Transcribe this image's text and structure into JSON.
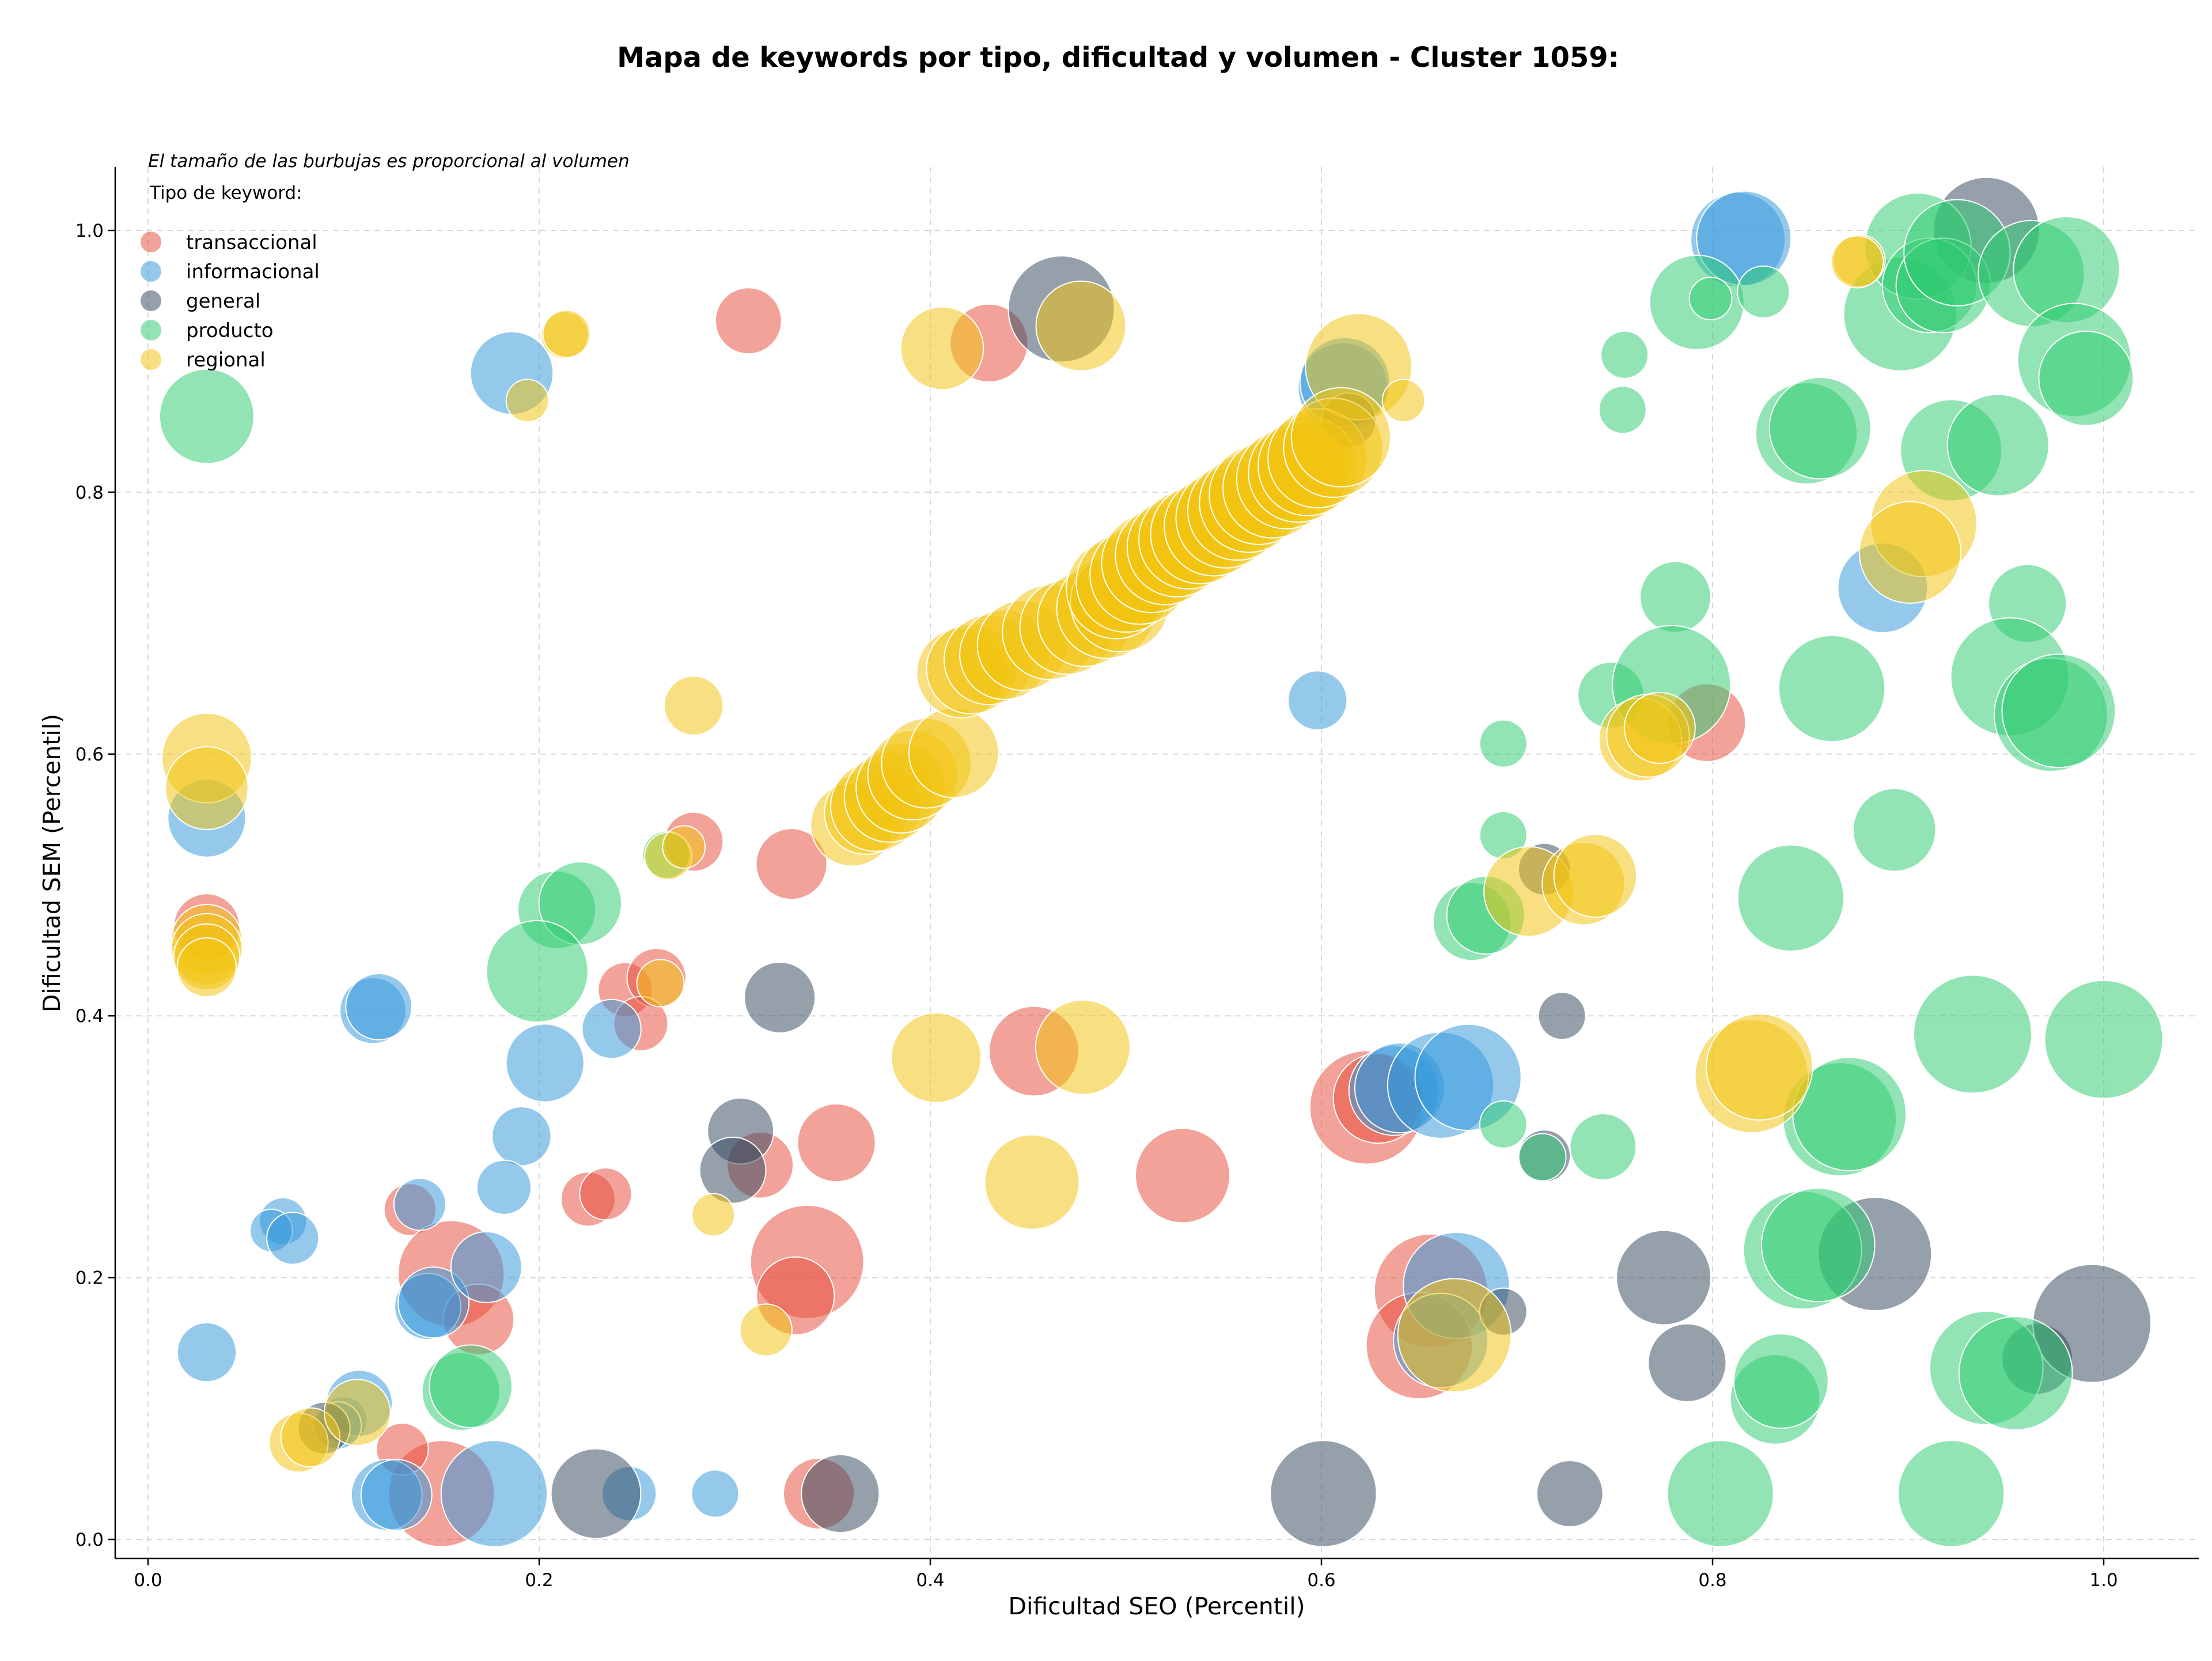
{
  "chart_data": {
    "type": "scatter",
    "title": "Mapa de keywords por tipo, dificultad y volumen - Cluster 1059:",
    "xlabel": "Dificultad SEO (Percentil)",
    "ylabel": "Dificultad SEM (Percentil)",
    "xlim": [
      -0.018,
      1.048
    ],
    "ylim": [
      -0.012,
      1.048
    ],
    "xticks": [
      "0.0",
      "0.2",
      "0.4",
      "0.6",
      "0.8",
      "1.0"
    ],
    "yticks": [
      "0.0",
      "0.2",
      "0.4",
      "0.6",
      "0.8",
      "1.0"
    ],
    "grid": true,
    "note": "El tamaño de las burbujas es proporcional al volumen",
    "legend_title": "Tipo de keyword:",
    "legend_position": "top-left",
    "series": [
      {
        "name": "transaccional",
        "color": "#e74c3c",
        "points": [
          [
            0.307,
            0.931,
            28
          ],
          [
            0.43,
            0.914,
            33
          ],
          [
            0.03,
            0.468,
            28
          ],
          [
            0.279,
            0.533,
            25
          ],
          [
            0.329,
            0.516,
            30
          ],
          [
            0.244,
            0.42,
            23
          ],
          [
            0.26,
            0.429,
            25
          ],
          [
            0.252,
            0.394,
            23
          ],
          [
            0.313,
            0.286,
            28
          ],
          [
            0.352,
            0.303,
            33
          ],
          [
            0.453,
            0.373,
            38
          ],
          [
            0.529,
            0.278,
            40
          ],
          [
            0.134,
            0.252,
            22
          ],
          [
            0.225,
            0.26,
            23
          ],
          [
            0.234,
            0.264,
            22
          ],
          [
            0.155,
            0.203,
            45
          ],
          [
            0.169,
            0.168,
            30
          ],
          [
            0.337,
            0.212,
            48
          ],
          [
            0.331,
            0.186,
            33
          ],
          [
            0.15,
            0.035,
            45
          ],
          [
            0.13,
            0.069,
            22
          ],
          [
            0.343,
            0.035,
            30
          ],
          [
            0.623,
            0.33,
            48
          ],
          [
            0.629,
            0.337,
            38
          ],
          [
            0.656,
            0.19,
            48
          ],
          [
            0.65,
            0.148,
            45
          ],
          [
            0.797,
            0.624,
            33
          ]
        ]
      },
      {
        "name": "informacional",
        "color": "#3498db",
        "points": [
          [
            0.186,
            0.891,
            35
          ],
          [
            0.813,
            0.993,
            40
          ],
          [
            0.816,
            0.994,
            40
          ],
          [
            0.03,
            0.551,
            33
          ],
          [
            0.611,
            0.88,
            38
          ],
          [
            0.612,
            0.884,
            38
          ],
          [
            0.598,
            0.641,
            25
          ],
          [
            0.887,
            0.727,
            38
          ],
          [
            0.115,
            0.404,
            28
          ],
          [
            0.118,
            0.407,
            28
          ],
          [
            0.237,
            0.39,
            25
          ],
          [
            0.203,
            0.364,
            33
          ],
          [
            0.191,
            0.308,
            25
          ],
          [
            0.182,
            0.269,
            23
          ],
          [
            0.139,
            0.256,
            22
          ],
          [
            0.069,
            0.243,
            20
          ],
          [
            0.063,
            0.236,
            18
          ],
          [
            0.074,
            0.23,
            22
          ],
          [
            0.143,
            0.178,
            28
          ],
          [
            0.146,
            0.181,
            30
          ],
          [
            0.173,
            0.208,
            30
          ],
          [
            0.03,
            0.143,
            25
          ],
          [
            0.1,
            0.091,
            20
          ],
          [
            0.108,
            0.104,
            28
          ],
          [
            0.097,
            0.087,
            20
          ],
          [
            0.122,
            0.034,
            30
          ],
          [
            0.127,
            0.034,
            30
          ],
          [
            0.177,
            0.035,
            45
          ],
          [
            0.246,
            0.035,
            23
          ],
          [
            0.29,
            0.035,
            20
          ],
          [
            0.637,
            0.343,
            38
          ],
          [
            0.64,
            0.345,
            38
          ],
          [
            0.661,
            0.347,
            45
          ],
          [
            0.675,
            0.353,
            45
          ],
          [
            0.669,
            0.194,
            45
          ],
          [
            0.661,
            0.152,
            40
          ]
        ]
      },
      {
        "name": "general",
        "color": "#34495e",
        "points": [
          [
            0.467,
            0.94,
            45
          ],
          [
            0.614,
            0.855,
            23
          ],
          [
            0.94,
            1.0,
            45
          ],
          [
            0.323,
            0.414,
            30
          ],
          [
            0.303,
            0.312,
            28
          ],
          [
            0.299,
            0.282,
            28
          ],
          [
            0.229,
            0.035,
            38
          ],
          [
            0.354,
            0.035,
            33
          ],
          [
            0.601,
            0.035,
            45
          ],
          [
            0.727,
            0.035,
            28
          ],
          [
            0.714,
            0.512,
            22
          ],
          [
            0.723,
            0.4,
            20
          ],
          [
            0.714,
            0.293,
            22
          ],
          [
            0.693,
            0.174,
            20
          ],
          [
            0.775,
            0.2,
            40
          ],
          [
            0.787,
            0.135,
            33
          ],
          [
            0.883,
            0.218,
            48
          ],
          [
            0.966,
            0.138,
            30
          ],
          [
            0.994,
            0.165,
            50
          ],
          [
            0.09,
            0.085,
            22
          ]
        ]
      },
      {
        "name": "producto",
        "color": "#2ecc71",
        "points": [
          [
            0.03,
            0.858,
            40
          ],
          [
            0.209,
            0.481,
            33
          ],
          [
            0.221,
            0.486,
            35
          ],
          [
            0.199,
            0.434,
            43
          ],
          [
            0.16,
            0.113,
            33
          ],
          [
            0.165,
            0.117,
            35
          ],
          [
            0.265,
            0.523,
            20
          ],
          [
            0.755,
            0.905,
            20
          ],
          [
            0.754,
            0.863,
            20
          ],
          [
            0.792,
            0.945,
            40
          ],
          [
            0.799,
            0.948,
            18
          ],
          [
            0.826,
            0.953,
            22
          ],
          [
            0.896,
            0.936,
            48
          ],
          [
            0.905,
            0.988,
            45
          ],
          [
            0.911,
            0.958,
            40
          ],
          [
            0.918,
            0.958,
            40
          ],
          [
            0.925,
            0.983,
            45
          ],
          [
            0.963,
            0.967,
            45
          ],
          [
            0.981,
            0.97,
            45
          ],
          [
            0.985,
            0.901,
            48
          ],
          [
            0.991,
            0.887,
            40
          ],
          [
            0.848,
            0.845,
            43
          ],
          [
            0.855,
            0.849,
            43
          ],
          [
            0.922,
            0.832,
            43
          ],
          [
            0.946,
            0.836,
            43
          ],
          [
            0.781,
            0.72,
            30
          ],
          [
            0.961,
            0.715,
            33
          ],
          [
            0.748,
            0.645,
            28
          ],
          [
            0.779,
            0.653,
            50
          ],
          [
            0.861,
            0.65,
            45
          ],
          [
            0.952,
            0.659,
            50
          ],
          [
            0.973,
            0.63,
            48
          ],
          [
            0.977,
            0.633,
            48
          ],
          [
            0.893,
            0.542,
            35
          ],
          [
            0.693,
            0.608,
            20
          ],
          [
            0.693,
            0.538,
            20
          ],
          [
            0.677,
            0.472,
            33
          ],
          [
            0.684,
            0.477,
            33
          ],
          [
            0.84,
            0.49,
            45
          ],
          [
            0.693,
            0.317,
            20
          ],
          [
            0.713,
            0.292,
            20
          ],
          [
            0.744,
            0.3,
            28
          ],
          [
            0.933,
            0.386,
            50
          ],
          [
            1.0,
            0.382,
            50
          ],
          [
            0.865,
            0.321,
            48
          ],
          [
            0.87,
            0.325,
            48
          ],
          [
            0.846,
            0.221,
            50
          ],
          [
            0.854,
            0.225,
            48
          ],
          [
            0.832,
            0.107,
            38
          ],
          [
            0.835,
            0.121,
            40
          ],
          [
            0.804,
            0.035,
            45
          ],
          [
            0.922,
            0.035,
            45
          ],
          [
            0.94,
            0.131,
            48
          ],
          [
            0.955,
            0.127,
            48
          ]
        ]
      },
      {
        "name": "regional",
        "color": "#f1c40f",
        "points": [
          [
            0.213,
            0.92,
            20
          ],
          [
            0.214,
            0.921,
            20
          ],
          [
            0.194,
            0.87,
            18
          ],
          [
            0.406,
            0.91,
            35
          ],
          [
            0.477,
            0.927,
            38
          ],
          [
            0.619,
            0.896,
            45
          ],
          [
            0.642,
            0.87,
            18
          ],
          [
            0.875,
            0.977,
            22
          ],
          [
            0.874,
            0.976,
            22
          ],
          [
            0.908,
            0.776,
            45
          ],
          [
            0.901,
            0.754,
            43
          ],
          [
            0.03,
            0.597,
            38
          ],
          [
            0.03,
            0.574,
            35
          ],
          [
            0.03,
            0.458,
            30
          ],
          [
            0.03,
            0.451,
            30
          ],
          [
            0.03,
            0.445,
            28
          ],
          [
            0.03,
            0.437,
            25
          ],
          [
            0.279,
            0.637,
            25
          ],
          [
            0.262,
            0.425,
            20
          ],
          [
            0.266,
            0.522,
            20
          ],
          [
            0.274,
            0.529,
            18
          ],
          [
            0.289,
            0.248,
            18
          ],
          [
            0.316,
            0.16,
            22
          ],
          [
            0.403,
            0.368,
            38
          ],
          [
            0.478,
            0.376,
            40
          ],
          [
            0.452,
            0.273,
            40
          ],
          [
            0.077,
            0.074,
            25
          ],
          [
            0.083,
            0.078,
            25
          ],
          [
            0.36,
            0.546,
            35
          ],
          [
            0.367,
            0.555,
            35
          ],
          [
            0.372,
            0.56,
            38
          ],
          [
            0.379,
            0.567,
            38
          ],
          [
            0.385,
            0.574,
            38
          ],
          [
            0.391,
            0.584,
            38
          ],
          [
            0.398,
            0.593,
            38
          ],
          [
            0.412,
            0.601,
            38
          ],
          [
            0.416,
            0.662,
            38
          ],
          [
            0.421,
            0.665,
            38
          ],
          [
            0.43,
            0.672,
            38
          ],
          [
            0.438,
            0.676,
            38
          ],
          [
            0.447,
            0.683,
            38
          ],
          [
            0.461,
            0.693,
            40
          ],
          [
            0.47,
            0.697,
            40
          ],
          [
            0.479,
            0.703,
            40
          ],
          [
            0.49,
            0.711,
            42
          ],
          [
            0.497,
            0.716,
            42
          ],
          [
            0.495,
            0.726,
            42
          ],
          [
            0.5,
            0.731,
            42
          ],
          [
            0.507,
            0.737,
            42
          ],
          [
            0.513,
            0.746,
            42
          ],
          [
            0.52,
            0.752,
            42
          ],
          [
            0.526,
            0.758,
            42
          ],
          [
            0.532,
            0.764,
            42
          ],
          [
            0.538,
            0.768,
            42
          ],
          [
            0.545,
            0.774,
            42
          ],
          [
            0.551,
            0.78,
            42
          ],
          [
            0.557,
            0.786,
            42
          ],
          [
            0.563,
            0.792,
            42
          ],
          [
            0.568,
            0.798,
            42
          ],
          [
            0.575,
            0.803,
            42
          ],
          [
            0.582,
            0.81,
            42
          ],
          [
            0.588,
            0.815,
            42
          ],
          [
            0.593,
            0.82,
            42
          ],
          [
            0.598,
            0.826,
            42
          ],
          [
            0.606,
            0.834,
            42
          ],
          [
            0.61,
            0.842,
            42
          ],
          [
            0.706,
            0.495,
            38
          ],
          [
            0.734,
            0.501,
            35
          ],
          [
            0.74,
            0.507,
            35
          ],
          [
            0.763,
            0.611,
            35
          ],
          [
            0.767,
            0.614,
            35
          ],
          [
            0.773,
            0.62,
            30
          ],
          [
            0.82,
            0.354,
            48
          ],
          [
            0.824,
            0.361,
            45
          ],
          [
            0.668,
            0.156,
            48
          ],
          [
            0.107,
            0.097,
            28
          ]
        ]
      }
    ]
  }
}
